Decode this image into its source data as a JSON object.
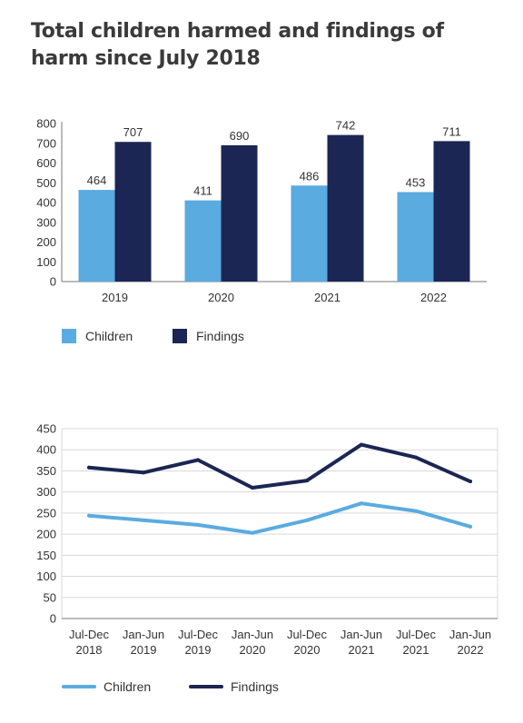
{
  "title": "Total children harmed and findings of harm since July 2018",
  "chart_data": [
    {
      "type": "bar",
      "categories": [
        "2019",
        "2020",
        "2021",
        "2022"
      ],
      "series": [
        {
          "name": "Children",
          "values": [
            464,
            411,
            486,
            453
          ],
          "color": "#5aabdf"
        },
        {
          "name": "Findings",
          "values": [
            707,
            690,
            742,
            711
          ],
          "color": "#1b2654"
        }
      ],
      "ylim": [
        0,
        800
      ],
      "yticks": [
        0,
        100,
        200,
        300,
        400,
        500,
        600,
        700,
        800
      ],
      "data_labels": true,
      "grid": false,
      "legend": "bottom-left"
    },
    {
      "type": "line",
      "categories": [
        [
          "Jul-Dec",
          "2018"
        ],
        [
          "Jan-Jun",
          "2019"
        ],
        [
          "Jul-Dec",
          "2019"
        ],
        [
          "Jan-Jun",
          "2020"
        ],
        [
          "Jul-Dec",
          "2020"
        ],
        [
          "Jan-Jun",
          "2021"
        ],
        [
          "Jul-Dec",
          "2021"
        ],
        [
          "Jan-Jun",
          "2022"
        ]
      ],
      "series": [
        {
          "name": "Children",
          "values": [
            244,
            233,
            222,
            203,
            233,
            273,
            255,
            218
          ],
          "color": "#5aabdf"
        },
        {
          "name": "Findings",
          "values": [
            358,
            346,
            376,
            310,
            327,
            412,
            382,
            325
          ],
          "color": "#1b2654"
        }
      ],
      "ylim": [
        0,
        450
      ],
      "yticks": [
        0,
        50,
        100,
        150,
        200,
        250,
        300,
        350,
        400,
        450
      ],
      "grid": true,
      "legend": "bottom-left"
    }
  ]
}
